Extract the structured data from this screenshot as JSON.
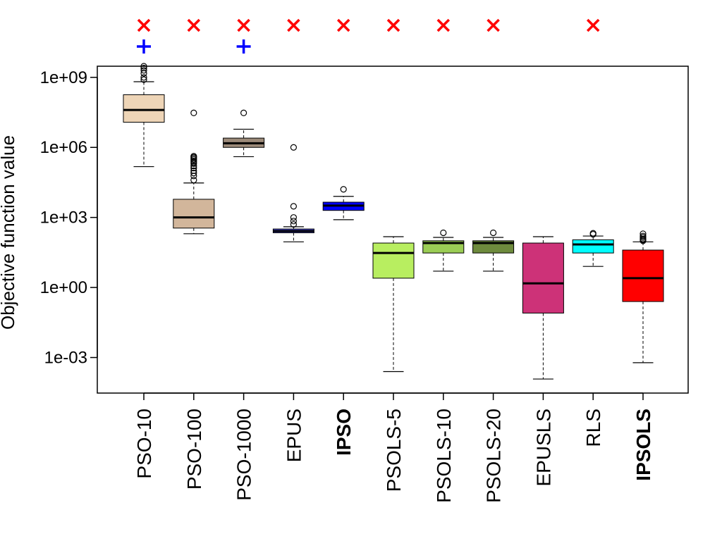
{
  "chart_data": {
    "type": "box",
    "ylabel": "Objective function value",
    "xlabel": "",
    "y_scale": "log10",
    "ylim": [
      3e-05,
      3000000000
    ],
    "y_ticks": [
      "1e-03",
      "1e+00",
      "1e+03",
      "1e+06",
      "1e+09"
    ],
    "y_tick_values": [
      0.001,
      1,
      1000,
      1000000,
      1000000000
    ],
    "grid": false,
    "legend": "none",
    "categories": [
      "PSO-10",
      "PSO-100",
      "PSO-1000",
      "EPUS",
      "IPSO",
      "PSOLS-5",
      "PSOLS-10",
      "PSOLS-20",
      "EPUSLS",
      "RLS",
      "IPSOLS"
    ],
    "bold_categories": [
      "IPSO",
      "IPSOLS"
    ],
    "boxes": [
      {
        "name": "PSO-10",
        "color": "#eed5b7",
        "median_color": "#000000",
        "whisker_low": 150000,
        "q1": 12000000,
        "median": 40000000,
        "q3": 180000000,
        "whisker_high": 650000000,
        "outliers": [
          800000000,
          1000000000,
          1500000000,
          2000000000,
          2500000000,
          3000000000
        ]
      },
      {
        "name": "PSO-100",
        "color": "#d2b69b",
        "median_color": "#000000",
        "whisker_low": 200,
        "q1": 350,
        "median": 1000,
        "q3": 6000,
        "whisker_high": 30000,
        "outliers": [
          40000,
          60000,
          80000,
          100000,
          130000,
          160000,
          200000,
          230000,
          260000,
          300000,
          340000,
          380000,
          420000,
          30000000
        ]
      },
      {
        "name": "PSO-1000",
        "color": "#9c8a79",
        "median_color": "#000000",
        "whisker_low": 400000,
        "q1": 1000000,
        "median": 1500000,
        "q3": 2500000,
        "whisker_high": 6000000,
        "outliers": [
          30000000
        ]
      },
      {
        "name": "EPUS",
        "color": "#4a4de6",
        "median_color": "#000000",
        "whisker_low": 90,
        "q1": 220,
        "median": 260,
        "q3": 320,
        "whisker_high": 400,
        "outliers": [
          500,
          700,
          1000,
          3000,
          1000000
        ]
      },
      {
        "name": "IPSO",
        "color": "#0000ff",
        "median_color": "#000000",
        "whisker_low": 800,
        "q1": 2000,
        "median": 3200,
        "q3": 4500,
        "whisker_high": 8000,
        "outliers": [
          16000
        ]
      },
      {
        "name": "PSOLS-5",
        "color": "#b8ee60",
        "median_color": "#000000",
        "whisker_low": 0.00025,
        "q1": 2.5,
        "median": 30,
        "q3": 80,
        "whisker_high": 150,
        "outliers": []
      },
      {
        "name": "PSOLS-10",
        "color": "#9bcd55",
        "median_color": "#000000",
        "whisker_low": 5,
        "q1": 30,
        "median": 80,
        "q3": 100,
        "whisker_high": 140,
        "outliers": [
          220
        ]
      },
      {
        "name": "PSOLS-20",
        "color": "#6e8b3d",
        "median_color": "#000000",
        "whisker_low": 5,
        "q1": 30,
        "median": 80,
        "q3": 100,
        "whisker_high": 140,
        "outliers": [
          220
        ]
      },
      {
        "name": "EPUSLS",
        "color": "#cd3278",
        "median_color": "#000000",
        "whisker_low": 0.00012,
        "q1": 0.08,
        "median": 1.5,
        "q3": 80,
        "whisker_high": 150,
        "outliers": []
      },
      {
        "name": "RLS",
        "color": "#00ffff",
        "median_color": "#000000",
        "whisker_low": 8,
        "q1": 30,
        "median": 70,
        "q3": 110,
        "whisker_high": 160,
        "outliers": [
          190,
          210
        ]
      },
      {
        "name": "IPSOLS",
        "color": "#ff0000",
        "median_color": "#000000",
        "whisker_low": 0.0006,
        "q1": 0.25,
        "median": 2.5,
        "q3": 40,
        "whisker_high": 90,
        "outliers": [
          100,
          110,
          120,
          140,
          160,
          200
        ]
      }
    ],
    "annotations": [
      {
        "marker": "×",
        "marker_name": "red-x-icon",
        "color": "#ff0000",
        "row": 1,
        "categories": [
          "PSO-10",
          "PSO-100",
          "PSO-1000",
          "EPUS",
          "IPSO",
          "PSOLS-5",
          "PSOLS-10",
          "PSOLS-20",
          "RLS"
        ]
      },
      {
        "marker": "+",
        "marker_name": "blue-plus-icon",
        "color": "#0000ff",
        "row": 2,
        "categories": [
          "PSO-10",
          "PSO-1000"
        ]
      }
    ]
  }
}
